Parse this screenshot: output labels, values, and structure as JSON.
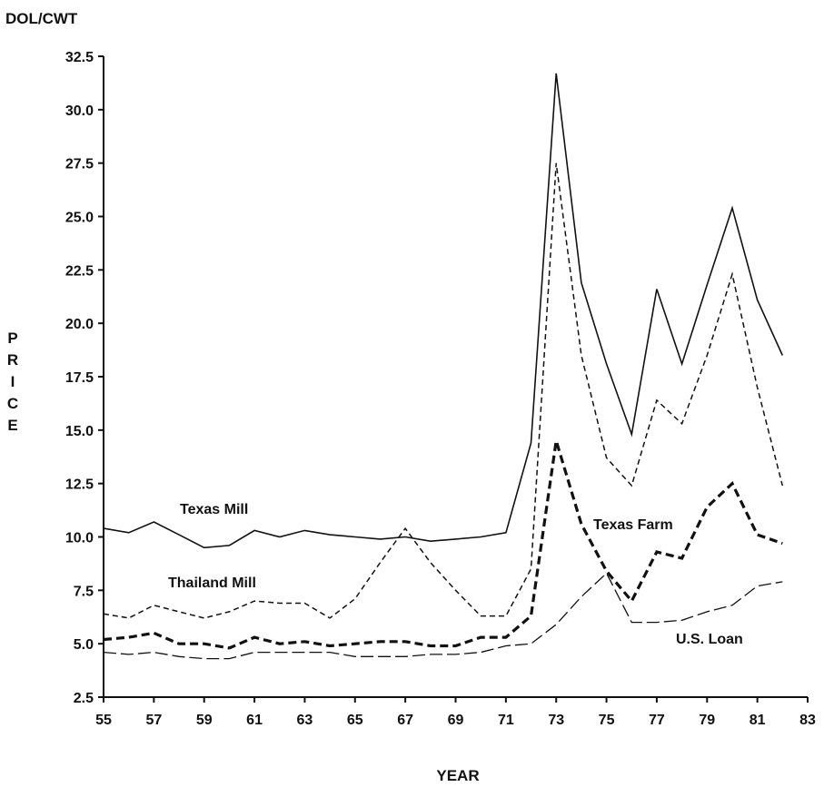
{
  "chart_data": {
    "type": "line",
    "title": "",
    "unit_label": "DOL/CWT",
    "ylabel": "PRICE",
    "xlabel": "YEAR",
    "xlim": [
      55,
      83
    ],
    "ylim": [
      2.5,
      32.5
    ],
    "x_ticks": [
      "55",
      "57",
      "59",
      "61",
      "63",
      "65",
      "67",
      "69",
      "71",
      "73",
      "75",
      "77",
      "79",
      "81",
      "83"
    ],
    "y_ticks": [
      "2.5",
      "5.0",
      "7.5",
      "10.0",
      "12.5",
      "15.0",
      "17.5",
      "20.0",
      "22.5",
      "25.0",
      "27.5",
      "30.0",
      "32.5"
    ],
    "x": [
      55,
      56,
      57,
      58,
      59,
      60,
      61,
      62,
      63,
      64,
      65,
      66,
      67,
      68,
      69,
      70,
      71,
      72,
      73,
      74,
      75,
      76,
      77,
      78,
      79,
      80,
      81,
      82
    ],
    "series": [
      {
        "name": "Texas Mill",
        "style": "solid",
        "color": "#111111",
        "values": [
          10.4,
          10.2,
          10.7,
          10.1,
          9.5,
          9.6,
          10.3,
          10.0,
          10.3,
          10.1,
          10.0,
          9.9,
          10.0,
          9.8,
          9.9,
          10.0,
          10.2,
          14.4,
          31.7,
          21.9,
          18.1,
          14.8,
          21.6,
          18.1,
          21.8,
          25.4,
          21.1,
          18.5
        ]
      },
      {
        "name": "Thailand Mill",
        "style": "dashed",
        "color": "#111111",
        "values": [
          6.4,
          6.2,
          6.8,
          6.5,
          6.2,
          6.5,
          7.0,
          6.9,
          6.9,
          6.2,
          7.1,
          8.8,
          10.4,
          8.8,
          7.5,
          6.3,
          6.3,
          8.5,
          27.5,
          18.5,
          13.7,
          12.4,
          16.4,
          15.3,
          18.5,
          22.3,
          17.0,
          12.4
        ]
      },
      {
        "name": "Texas Farm",
        "style": "heavy-dashed",
        "color": "#111111",
        "values": [
          5.2,
          5.3,
          5.5,
          5.0,
          5.0,
          4.8,
          5.3,
          5.0,
          5.1,
          4.9,
          5.0,
          5.1,
          5.1,
          4.9,
          4.9,
          5.3,
          5.3,
          6.3,
          14.5,
          10.6,
          8.4,
          7.0,
          9.3,
          9.0,
          11.4,
          12.5,
          10.1,
          9.7
        ]
      },
      {
        "name": "U.S. Loan",
        "style": "long-dash",
        "color": "#111111",
        "values": [
          4.6,
          4.5,
          4.6,
          4.4,
          4.3,
          4.3,
          4.6,
          4.6,
          4.6,
          4.6,
          4.4,
          4.4,
          4.4,
          4.5,
          4.5,
          4.6,
          4.9,
          5.0,
          5.9,
          7.2,
          8.3,
          6.0,
          6.0,
          6.1,
          6.5,
          6.8,
          7.7,
          7.9
        ]
      }
    ],
    "series_labels": [
      "Texas Mill",
      "Thailand Mill",
      "Texas Farm",
      "U.S. Loan"
    ],
    "legend": "inline labels",
    "grid": false
  }
}
